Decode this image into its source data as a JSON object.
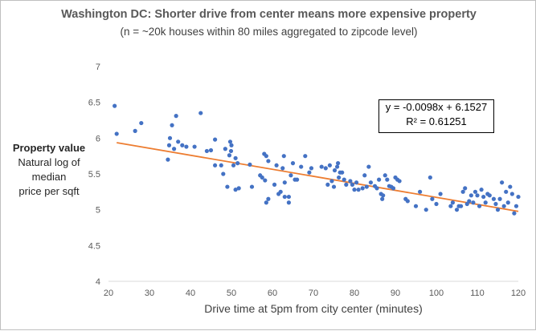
{
  "chart_data": {
    "type": "scatter",
    "title": "Washington DC: Shorter drive from center means more expensive property",
    "subtitle": "(n = ~20k houses within 80 miles aggregated to zipcode level)",
    "ylabel_bold": "Property value",
    "ylabel_lines": [
      "Natural log of",
      "median",
      "price per sqft"
    ],
    "xlabel": "Drive time at 5pm from city center (minutes)",
    "xlim": [
      20,
      120
    ],
    "ylim": [
      4,
      7
    ],
    "x_ticks": [
      20,
      30,
      40,
      50,
      60,
      70,
      80,
      90,
      100,
      110,
      120
    ],
    "y_ticks": [
      4,
      4.5,
      5,
      5.5,
      6,
      6.5,
      7
    ],
    "grid": false,
    "point_color": "#4472c4",
    "trendline_color": "#ed7d31",
    "trendline": {
      "slope": -0.0098,
      "intercept": 6.1527,
      "x_range": [
        22,
        120
      ],
      "equation_text": "y = -0.0098x + 6.1527",
      "r2_text": "R² = 0.61251"
    },
    "points": [
      [
        21.5,
        6.45
      ],
      [
        22,
        6.06
      ],
      [
        26.5,
        6.1
      ],
      [
        28,
        6.21
      ],
      [
        34.5,
        5.7
      ],
      [
        34.8,
        5.9
      ],
      [
        35,
        6.0
      ],
      [
        35.5,
        6.18
      ],
      [
        36,
        5.85
      ],
      [
        36.5,
        6.31
      ],
      [
        37,
        5.95
      ],
      [
        38,
        5.9
      ],
      [
        39,
        5.88
      ],
      [
        41,
        5.88
      ],
      [
        42.5,
        6.35
      ],
      [
        44,
        5.82
      ],
      [
        45,
        5.83
      ],
      [
        46,
        5.98
      ],
      [
        46,
        5.62
      ],
      [
        47.5,
        5.62
      ],
      [
        48,
        5.5
      ],
      [
        48.5,
        5.85
      ],
      [
        49,
        5.32
      ],
      [
        49.5,
        5.76
      ],
      [
        49.7,
        5.95
      ],
      [
        49.9,
        5.82
      ],
      [
        50,
        5.9
      ],
      [
        50.5,
        5.62
      ],
      [
        51,
        5.28
      ],
      [
        51,
        5.72
      ],
      [
        51.5,
        5.65
      ],
      [
        51.8,
        5.3
      ],
      [
        54.5,
        5.63
      ],
      [
        55,
        5.32
      ],
      [
        57,
        5.48
      ],
      [
        57.5,
        5.45
      ],
      [
        58,
        5.78
      ],
      [
        58.2,
        5.41
      ],
      [
        58.5,
        5.75
      ],
      [
        58.5,
        5.1
      ],
      [
        59,
        5.68
      ],
      [
        59,
        5.15
      ],
      [
        60.5,
        5.35
      ],
      [
        61,
        5.62
      ],
      [
        61.5,
        5.22
      ],
      [
        62,
        5.25
      ],
      [
        62.5,
        5.58
      ],
      [
        62.8,
        5.75
      ],
      [
        63,
        5.18
      ],
      [
        63,
        5.38
      ],
      [
        64,
        5.1
      ],
      [
        64,
        5.18
      ],
      [
        64.5,
        5.48
      ],
      [
        65,
        5.65
      ],
      [
        65.5,
        5.42
      ],
      [
        66,
        5.42
      ],
      [
        67,
        5.6
      ],
      [
        68,
        5.75
      ],
      [
        69,
        5.52
      ],
      [
        69.5,
        5.58
      ],
      [
        72,
        5.6
      ],
      [
        73,
        5.58
      ],
      [
        73.5,
        5.35
      ],
      [
        74,
        5.62
      ],
      [
        74.5,
        5.4
      ],
      [
        75,
        5.32
      ],
      [
        75.2,
        5.55
      ],
      [
        75.8,
        5.6
      ],
      [
        76,
        5.65
      ],
      [
        76.2,
        5.45
      ],
      [
        76.5,
        5.52
      ],
      [
        77,
        5.52
      ],
      [
        77.5,
        5.42
      ],
      [
        78,
        5.35
      ],
      [
        79,
        5.4
      ],
      [
        79.5,
        5.35
      ],
      [
        80,
        5.28
      ],
      [
        80.5,
        5.38
      ],
      [
        81,
        5.28
      ],
      [
        82,
        5.3
      ],
      [
        82.5,
        5.48
      ],
      [
        83,
        5.32
      ],
      [
        83.5,
        5.6
      ],
      [
        84,
        5.38
      ],
      [
        85,
        5.33
      ],
      [
        85.5,
        5.3
      ],
      [
        86,
        5.42
      ],
      [
        86.5,
        5.22
      ],
      [
        86.8,
        5.15
      ],
      [
        87,
        5.2
      ],
      [
        87.5,
        5.48
      ],
      [
        88,
        5.42
      ],
      [
        88.5,
        5.33
      ],
      [
        89,
        5.32
      ],
      [
        89.5,
        5.3
      ],
      [
        90,
        5.45
      ],
      [
        90.5,
        5.42
      ],
      [
        91,
        5.4
      ],
      [
        92.5,
        5.15
      ],
      [
        93,
        5.12
      ],
      [
        95,
        5.05
      ],
      [
        96,
        5.25
      ],
      [
        97.5,
        5.0
      ],
      [
        98.5,
        5.45
      ],
      [
        99,
        5.15
      ],
      [
        100,
        5.08
      ],
      [
        101,
        5.22
      ],
      [
        103.5,
        5.05
      ],
      [
        104,
        5.1
      ],
      [
        105,
        5.0
      ],
      [
        105.5,
        5.05
      ],
      [
        106,
        5.05
      ],
      [
        106.5,
        5.25
      ],
      [
        107,
        5.3
      ],
      [
        107.5,
        5.08
      ],
      [
        108,
        5.12
      ],
      [
        108.5,
        5.2
      ],
      [
        109,
        5.1
      ],
      [
        109.5,
        5.25
      ],
      [
        110,
        5.2
      ],
      [
        110.5,
        5.05
      ],
      [
        111,
        5.28
      ],
      [
        111.5,
        5.18
      ],
      [
        112,
        5.1
      ],
      [
        112.5,
        5.22
      ],
      [
        113,
        5.2
      ],
      [
        114,
        5.15
      ],
      [
        114.5,
        5.08
      ],
      [
        115,
        5.0
      ],
      [
        115.5,
        5.15
      ],
      [
        116,
        5.38
      ],
      [
        116.5,
        5.05
      ],
      [
        117,
        5.25
      ],
      [
        117.5,
        5.1
      ],
      [
        118,
        5.32
      ],
      [
        118.5,
        5.22
      ],
      [
        119,
        4.95
      ],
      [
        119.5,
        5.05
      ],
      [
        120,
        5.18
      ]
    ]
  }
}
